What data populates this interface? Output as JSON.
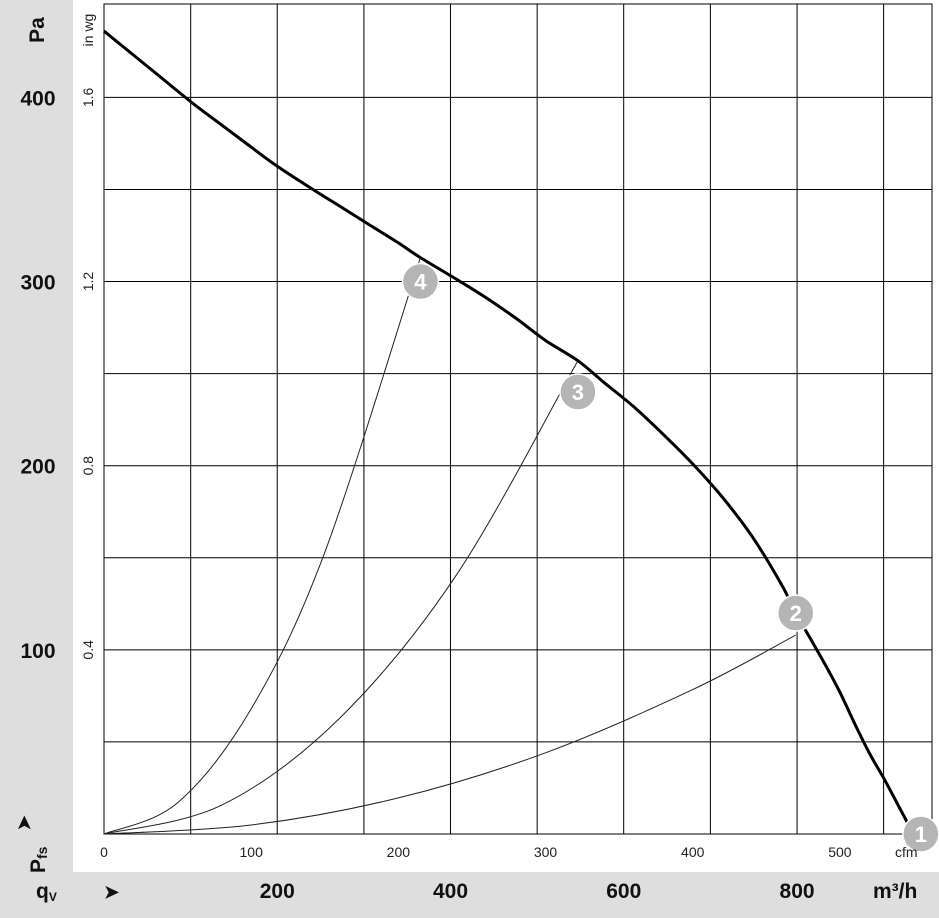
{
  "chart_data": {
    "type": "line",
    "title": "",
    "axes": {
      "y_primary": {
        "unit": "Pa",
        "ticks": [
          100,
          200,
          300,
          400
        ],
        "range": [
          0,
          435
        ]
      },
      "y_secondary": {
        "unit": "in wg",
        "ticks": [
          "0.4",
          "0.8",
          "1.2",
          "1.6"
        ]
      },
      "x_primary": {
        "unit": "cfm",
        "ticks": [
          0,
          100,
          200,
          300,
          400,
          500
        ],
        "range": [
          0,
          565
        ]
      },
      "x_secondary": {
        "unit": "m³/h",
        "ticks": [
          200,
          400,
          600,
          800
        ]
      },
      "y_label_main": "P",
      "y_label_sub": "fs",
      "y_arrow": "➤",
      "x_label_main": "q",
      "x_label_sub": "V",
      "x_arrow": "➤",
      "grid": true,
      "grid_x_cfm": [
        58.9,
        117.7,
        176.6,
        235.4,
        294.3,
        353.1,
        412.0,
        470.9,
        529.7
      ],
      "grid_y_pa": [
        50,
        100,
        150,
        200,
        250,
        300,
        350,
        400
      ]
    },
    "series": [
      {
        "role": "fan-curve",
        "x": [
          0,
          20,
          40,
          60,
          80,
          100,
          117,
          140,
          160,
          180,
          200,
          215,
          240,
          260,
          280,
          300,
          322,
          340,
          360,
          380,
          400,
          420,
          440,
          460,
          470,
          480,
          490,
          500,
          510,
          520,
          530,
          540,
          550
        ],
        "y": [
          436,
          423,
          410,
          397,
          385,
          373,
          363,
          351,
          341,
          331,
          321,
          313,
          301,
          291,
          280,
          268,
          257,
          245,
          232,
          217,
          201,
          183,
          162,
          136,
          120,
          106,
          92,
          77,
          60,
          44,
          30,
          15,
          0
        ]
      },
      {
        "role": "system-curve",
        "x": [
          0,
          100,
          200,
          300,
          400,
          470
        ],
        "y": [
          0,
          4.9,
          19.6,
          44.1,
          78.4,
          108
        ]
      },
      {
        "role": "system-curve",
        "x": [
          0,
          80,
          160,
          240,
          322
        ],
        "y": [
          0,
          15.7,
          62.8,
          141.3,
          257
        ]
      },
      {
        "role": "system-curve",
        "x": [
          0,
          50,
          100,
          150,
          215
        ],
        "y": [
          0,
          17,
          68,
          153,
          313
        ]
      }
    ],
    "points": [
      {
        "label": "1",
        "x": 555,
        "y": 0
      },
      {
        "label": "2",
        "x": 470,
        "y": 120
      },
      {
        "label": "3",
        "x": 322,
        "y": 240
      },
      {
        "label": "4",
        "x": 215,
        "y": 300
      }
    ]
  }
}
